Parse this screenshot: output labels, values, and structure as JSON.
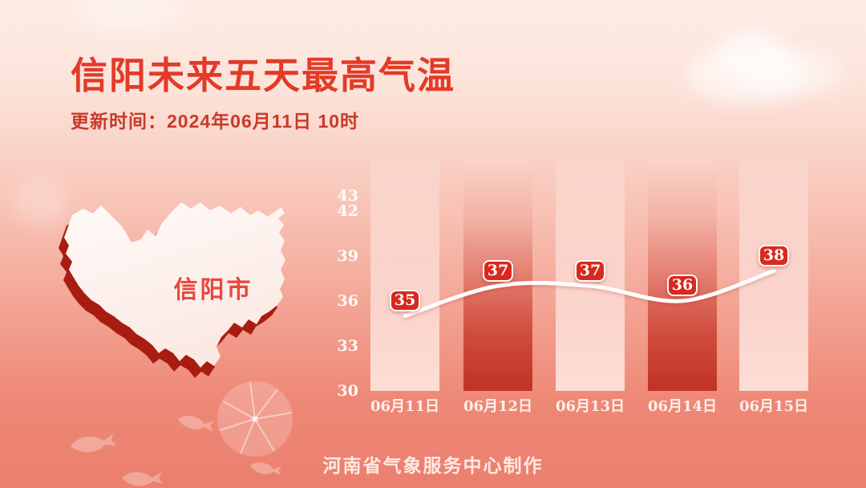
{
  "colors": {
    "accent_red": "#e23b28",
    "subtitle_red": "#c93a2a",
    "badge_red": "#d9281d",
    "dark_bar_red": "#c13227",
    "map_shadow_red": "#a81c12",
    "line_color": "#ffffff"
  },
  "header": {
    "title": "信阳未来五天最高气温",
    "update_time": "更新时间：2024年06月11日 10时"
  },
  "map": {
    "label": "信阳市"
  },
  "chart_data": {
    "type": "line",
    "title": "信阳未来五天最高气温",
    "xlabel": "",
    "ylabel": "",
    "x": [
      "06月11日",
      "06月12日",
      "06月13日",
      "06月14日",
      "06月15日"
    ],
    "series": [
      {
        "name": "最高气温",
        "values": [
          35,
          37,
          37,
          36,
          38
        ]
      }
    ],
    "y_ticks": [
      43,
      42,
      39,
      36,
      33,
      30
    ],
    "ylim": [
      30,
      43
    ],
    "grid": false,
    "legend_position": "none",
    "column_highlight": [
      "light",
      "dark",
      "light",
      "dark",
      "light"
    ]
  },
  "footer": {
    "credit": "河南省气象服务中心制作"
  }
}
